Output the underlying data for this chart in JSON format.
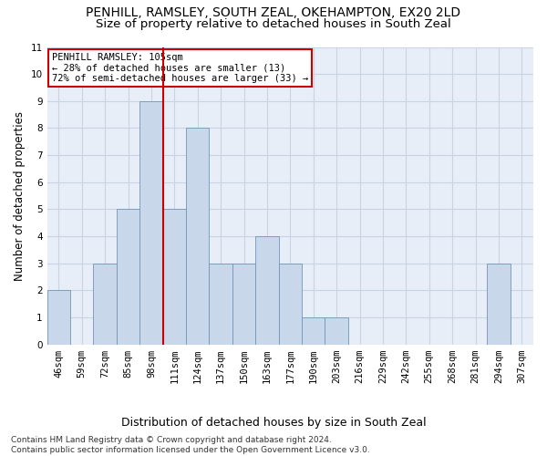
{
  "title1": "PENHILL, RAMSLEY, SOUTH ZEAL, OKEHAMPTON, EX20 2LD",
  "title2": "Size of property relative to detached houses in South Zeal",
  "xlabel": "Distribution of detached houses by size in South Zeal",
  "ylabel": "Number of detached properties",
  "categories": [
    "46sqm",
    "59sqm",
    "72sqm",
    "85sqm",
    "98sqm",
    "111sqm",
    "124sqm",
    "137sqm",
    "150sqm",
    "163sqm",
    "177sqm",
    "190sqm",
    "203sqm",
    "216sqm",
    "229sqm",
    "242sqm",
    "255sqm",
    "268sqm",
    "281sqm",
    "294sqm",
    "307sqm"
  ],
  "values": [
    2,
    0,
    3,
    5,
    9,
    5,
    8,
    3,
    3,
    4,
    3,
    1,
    1,
    0,
    0,
    0,
    0,
    0,
    0,
    3,
    0
  ],
  "bar_color": "#c8d8ea",
  "bar_edge_color": "#7096b8",
  "vline_x_index": 5,
  "vline_color": "#cc0000",
  "annotation_text": "PENHILL RAMSLEY: 105sqm\n← 28% of detached houses are smaller (13)\n72% of semi-detached houses are larger (33) →",
  "annotation_box_color": "#ffffff",
  "annotation_box_edge": "#cc0000",
  "ylim": [
    0,
    11
  ],
  "yticks": [
    0,
    1,
    2,
    3,
    4,
    5,
    6,
    7,
    8,
    9,
    10,
    11
  ],
  "grid_color": "#c8d4e4",
  "bg_color": "#e8eef8",
  "footnote": "Contains HM Land Registry data © Crown copyright and database right 2024.\nContains public sector information licensed under the Open Government Licence v3.0.",
  "title1_fontsize": 10,
  "title2_fontsize": 9.5,
  "xlabel_fontsize": 9,
  "ylabel_fontsize": 8.5,
  "tick_fontsize": 7.5,
  "annotation_fontsize": 7.5,
  "footnote_fontsize": 6.5
}
